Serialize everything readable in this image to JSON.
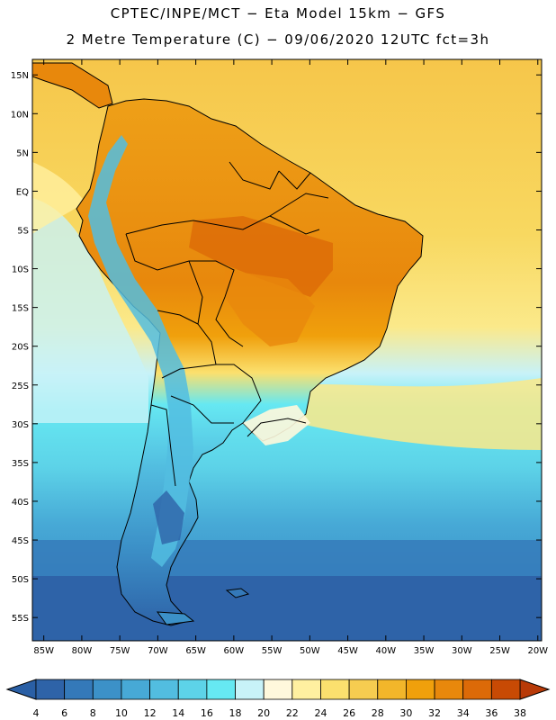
{
  "header": {
    "line1": "CPTEC/INPE/MCT −  Eta Model 15km − GFS",
    "line2": "2 Metre Temperature (C) − 09/06/2020 12UTC fct=3h"
  },
  "map": {
    "lat_ticks": [
      {
        "lat": 15,
        "label": "15N"
      },
      {
        "lat": 10,
        "label": "10N"
      },
      {
        "lat": 5,
        "label": "5N"
      },
      {
        "lat": 0,
        "label": "EQ"
      },
      {
        "lat": -5,
        "label": "5S"
      },
      {
        "lat": -10,
        "label": "10S"
      },
      {
        "lat": -15,
        "label": "15S"
      },
      {
        "lat": -20,
        "label": "20S"
      },
      {
        "lat": -25,
        "label": "25S"
      },
      {
        "lat": -30,
        "label": "30S"
      },
      {
        "lat": -35,
        "label": "35S"
      },
      {
        "lat": -40,
        "label": "40S"
      },
      {
        "lat": -45,
        "label": "45S"
      },
      {
        "lat": -50,
        "label": "50S"
      },
      {
        "lat": -55,
        "label": "55S"
      }
    ],
    "lon_ticks": [
      {
        "lon": -85,
        "label": "85W"
      },
      {
        "lon": -80,
        "label": "80W"
      },
      {
        "lon": -75,
        "label": "75W"
      },
      {
        "lon": -70,
        "label": "70W"
      },
      {
        "lon": -65,
        "label": "65W"
      },
      {
        "lon": -60,
        "label": "60W"
      },
      {
        "lon": -55,
        "label": "55W"
      },
      {
        "lon": -50,
        "label": "50W"
      },
      {
        "lon": -45,
        "label": "45W"
      },
      {
        "lon": -40,
        "label": "40W"
      },
      {
        "lon": -35,
        "label": "35W"
      },
      {
        "lon": -30,
        "label": "30W"
      },
      {
        "lon": -25,
        "label": "25W"
      },
      {
        "lon": -20,
        "label": "20W"
      }
    ]
  },
  "colorbar": {
    "low_arrow_color": "#2a5fa5",
    "high_arrow_color": "#b83a08",
    "labels": [
      "4",
      "6",
      "8",
      "10",
      "12",
      "14",
      "16",
      "18",
      "20",
      "22",
      "24",
      "26",
      "28",
      "30",
      "32",
      "34",
      "36",
      "38"
    ],
    "colors": [
      "#2e63a8",
      "#3479b9",
      "#3c91c8",
      "#47a9d6",
      "#52bde0",
      "#5dd3e8",
      "#66e8f2",
      "#c8f2f8",
      "#fff8dc",
      "#fff0a0",
      "#fbe06e",
      "#f6cc50",
      "#f2b62a",
      "#f0a00c",
      "#e8880c",
      "#dc6a08",
      "#c84a04"
    ]
  }
}
